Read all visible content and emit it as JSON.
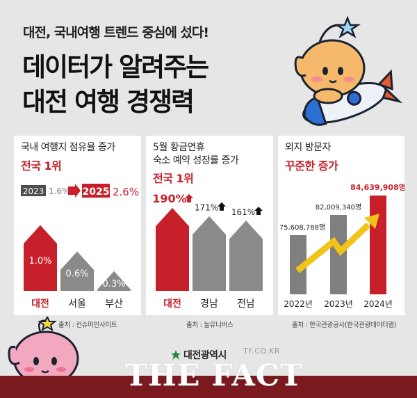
{
  "header": {
    "subtitle": "대전, 국내여행 트렌드 중심에 섰다!",
    "title_line1": "데이터가 알려주는",
    "title_line2": "대전 여행 경쟁력"
  },
  "panels": [
    {
      "title": "국내 여행지 점유율 증가",
      "highlight": "전국 1위",
      "legend_year_old": "2023",
      "legend_value_old": "1.6%",
      "legend_year_new": "2025",
      "legend_value_new": "2.6%",
      "source": "출처 : 컨슈머인사이트"
    },
    {
      "title_line1": "5월 황금연휴",
      "title_line2": "숙소 예약 성장률 증가",
      "highlight": "전국 1위",
      "source": "출처 : 놀유니버스"
    },
    {
      "title": "외지 방문자",
      "highlight": "꾸준한 증가",
      "source": "출처 : 한국관광공사(한국관광데이터랩)"
    }
  ],
  "chart_data": [
    {
      "type": "bar",
      "title": "국내 여행지 점유율 증가",
      "categories": [
        "대전",
        "서울",
        "부산"
      ],
      "values": [
        1.0,
        0.6,
        0.3
      ],
      "labels": [
        "1.0%",
        "0.6%",
        "0.3%"
      ],
      "ylim": [
        0,
        1.25
      ],
      "colors": [
        "#c8202a",
        "#8a8a8a",
        "#8a8a8a"
      ]
    },
    {
      "type": "bar",
      "title": "5월 황금연휴 숙소 예약 성장률 증가",
      "categories": [
        "대전",
        "경남",
        "전남"
      ],
      "values": [
        190,
        171,
        161
      ],
      "labels": [
        "190%",
        "171%",
        "161%"
      ],
      "ylim": [
        0,
        220
      ],
      "colors": [
        "#c8202a",
        "#8a8a8a",
        "#8a8a8a"
      ]
    },
    {
      "type": "bar",
      "title": "외지 방문자",
      "categories": [
        "2022년",
        "2023년",
        "2024년"
      ],
      "values": [
        75608788,
        82009340,
        84639908
      ],
      "labels": [
        "75,608,788명",
        "82,009,340명",
        "84,639,908명"
      ],
      "colors": [
        "#7f7f7f",
        "#7f7f7f",
        "#c8202a"
      ],
      "trend_color": "#f2c318"
    }
  ],
  "logo": {
    "text": "대전광역시"
  },
  "brand": {
    "name": "THE FACT",
    "url": "TF.CO.KR"
  }
}
